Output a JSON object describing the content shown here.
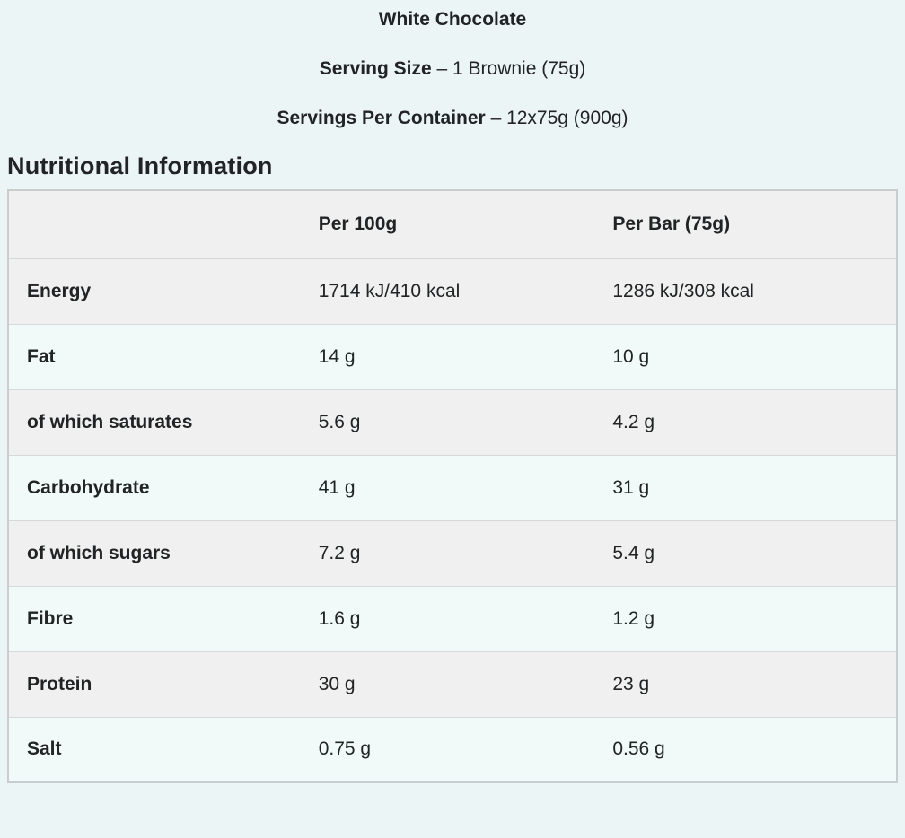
{
  "header": {
    "title": "White Chocolate",
    "lines": [
      {
        "label": "Serving Size",
        "value": "– 1 Brownie (75g)"
      },
      {
        "label": "Servings Per Container",
        "value": "– 12x75g (900g)"
      }
    ]
  },
  "section": {
    "title": "Nutritional Information"
  },
  "table": {
    "columns": [
      {
        "label": ""
      },
      {
        "label": "Per 100g"
      },
      {
        "label": "Per Bar (75g)"
      }
    ],
    "rows": [
      {
        "label": "Energy",
        "per_100g": "1714 kJ/410 kcal",
        "per_bar": "1286 kJ/308 kcal"
      },
      {
        "label": "Fat",
        "per_100g": "14 g",
        "per_bar": "10 g"
      },
      {
        "label": "of which saturates",
        "per_100g": "5.6 g",
        "per_bar": "4.2 g"
      },
      {
        "label": "Carbohydrate",
        "per_100g": "41 g",
        "per_bar": "31 g"
      },
      {
        "label": "of which sugars",
        "per_100g": "7.2 g",
        "per_bar": "5.4 g"
      },
      {
        "label": "Fibre",
        "per_100g": "1.6 g",
        "per_bar": "1.2 g"
      },
      {
        "label": "Protein",
        "per_100g": "30 g",
        "per_bar": "23 g"
      },
      {
        "label": "Salt",
        "per_100g": "0.75 g",
        "per_bar": "0.56 g"
      }
    ]
  },
  "colors": {
    "page_background": "#ecf5f5",
    "row_gray": "#f0f0f0",
    "row_tint": "#f1f9f9",
    "header_row": "#f0f0f0",
    "border": "#c9cdce",
    "row_divider": "#d6d9d9",
    "text": "#212324"
  }
}
